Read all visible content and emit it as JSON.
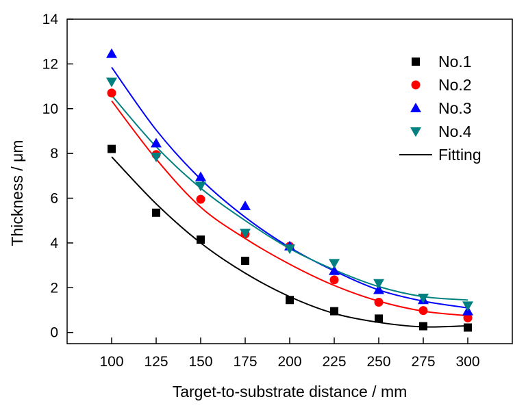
{
  "chart_data": {
    "type": "scatter",
    "xlabel": "Target-to-substrate distance / mm",
    "ylabel": "Thickness / μm",
    "xlim": [
      75,
      325
    ],
    "ylim": [
      -0.5,
      14
    ],
    "xticks": [
      100,
      125,
      150,
      175,
      200,
      225,
      250,
      275,
      300
    ],
    "yticks": [
      0,
      2,
      4,
      6,
      8,
      10,
      12,
      14
    ],
    "grid": false,
    "legend_position": "top-right",
    "x": [
      100,
      125,
      150,
      175,
      200,
      225,
      250,
      275,
      300
    ],
    "series": [
      {
        "name": "No.1",
        "marker": "square",
        "color": "#000000",
        "values": [
          8.2,
          5.35,
          4.15,
          3.2,
          1.45,
          0.95,
          0.62,
          0.28,
          0.22
        ]
      },
      {
        "name": "No.2",
        "marker": "circle",
        "color": "#ff0000",
        "values": [
          10.7,
          7.95,
          5.95,
          4.4,
          3.85,
          2.35,
          1.35,
          0.98,
          0.65
        ]
      },
      {
        "name": "No.3",
        "marker": "triangle-up",
        "color": "#0000ff",
        "values": [
          12.45,
          8.45,
          6.95,
          5.65,
          3.85,
          2.75,
          1.9,
          1.45,
          0.95
        ]
      },
      {
        "name": "No.4",
        "marker": "triangle-down",
        "color": "#008080",
        "values": [
          11.2,
          7.85,
          6.55,
          4.45,
          3.75,
          3.1,
          2.2,
          1.55,
          1.2
        ]
      }
    ],
    "fits": [
      {
        "series": "No.1",
        "color": "#000000",
        "values": [
          7.85,
          5.75,
          4.0,
          2.65,
          1.6,
          0.85,
          0.45,
          0.25,
          0.3
        ]
      },
      {
        "series": "No.2",
        "color": "#ff0000",
        "values": [
          10.35,
          7.75,
          5.6,
          4.2,
          3.05,
          2.1,
          1.4,
          0.95,
          0.75
        ]
      },
      {
        "series": "No.3",
        "color": "#0000ff",
        "values": [
          11.85,
          9.05,
          6.85,
          5.15,
          3.8,
          2.75,
          1.9,
          1.4,
          1.1
        ]
      },
      {
        "series": "No.4",
        "color": "#008080",
        "values": [
          10.6,
          8.3,
          6.45,
          5.0,
          3.75,
          2.8,
          2.05,
          1.6,
          1.45
        ]
      }
    ],
    "legend": [
      {
        "label": "No.1",
        "marker": "square",
        "color": "#000000"
      },
      {
        "label": "No.2",
        "marker": "circle",
        "color": "#ff0000"
      },
      {
        "label": "No.3",
        "marker": "triangle-up",
        "color": "#0000ff"
      },
      {
        "label": "No.4",
        "marker": "triangle-down",
        "color": "#008080"
      },
      {
        "label": "Fitting",
        "marker": "line",
        "color": "#000000"
      }
    ]
  }
}
